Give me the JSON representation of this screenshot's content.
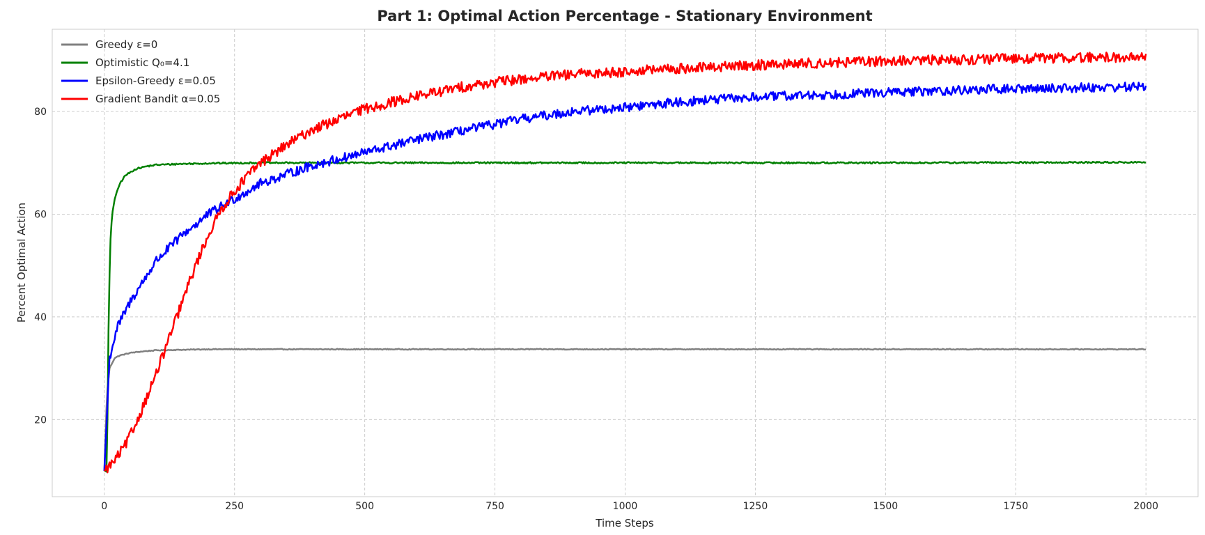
{
  "chart_data": {
    "type": "line",
    "title": "Part 1: Optimal Action Percentage - Stationary Environment",
    "xlabel": "Time Steps",
    "ylabel": "Percent Optimal Action",
    "xlim": [
      -100,
      2100
    ],
    "ylim": [
      5,
      96
    ],
    "xticks": [
      0,
      250,
      500,
      750,
      1000,
      1250,
      1500,
      1750,
      2000
    ],
    "xtick_labels": [
      "0",
      "250",
      "500",
      "750",
      "1000",
      "1250",
      "1500",
      "1750",
      "2000"
    ],
    "yticks": [
      20,
      40,
      60,
      80
    ],
    "ytick_labels": [
      "20",
      "40",
      "60",
      "80"
    ],
    "grid": true,
    "legend_position": "top-left",
    "series": [
      {
        "name": "Greedy ε=0",
        "color": "#808080",
        "x": [
          0,
          5,
          10,
          20,
          30,
          50,
          75,
          100,
          150,
          200,
          300,
          500,
          1000,
          1500,
          2000
        ],
        "values": [
          10,
          25,
          30,
          32,
          32.5,
          33.0,
          33.3,
          33.5,
          33.6,
          33.7,
          33.7,
          33.7,
          33.7,
          33.7,
          33.7
        ]
      },
      {
        "name": "Optimistic Q₀=4.1",
        "color": "#008000",
        "x": [
          0,
          5,
          7,
          9,
          12,
          15,
          20,
          30,
          40,
          60,
          80,
          100,
          150,
          200,
          300,
          500,
          1000,
          1500,
          2000
        ],
        "values": [
          10,
          10,
          30,
          45,
          55,
          60,
          63,
          66,
          67.5,
          68.8,
          69.3,
          69.6,
          69.8,
          69.9,
          70,
          70,
          70,
          70,
          70.1
        ]
      },
      {
        "name": "Epsilon-Greedy ε=0.05",
        "color": "#0000ff",
        "x": [
          0,
          10,
          25,
          50,
          75,
          100,
          150,
          200,
          250,
          300,
          400,
          500,
          600,
          700,
          800,
          900,
          1000,
          1100,
          1200,
          1300,
          1400,
          1500,
          1600,
          1700,
          1800,
          1900,
          2000
        ],
        "values": [
          10,
          32,
          38,
          43,
          47,
          51,
          56,
          60,
          63,
          66,
          69.5,
          72,
          74.5,
          76.5,
          78.5,
          80,
          80.8,
          81.8,
          82.5,
          83,
          83.3,
          83.7,
          84,
          84.3,
          84.5,
          84.7,
          84.8
        ]
      },
      {
        "name": "Gradient Bandit α=0.05",
        "color": "#ff0000",
        "x": [
          0,
          20,
          40,
          60,
          80,
          100,
          125,
          150,
          175,
          200,
          225,
          250,
          275,
          300,
          350,
          400,
          450,
          500,
          600,
          700,
          800,
          900,
          1000,
          1100,
          1200,
          1300,
          1400,
          1500,
          1600,
          1700,
          1800,
          1900,
          2000
        ],
        "values": [
          10,
          12,
          15,
          19,
          24,
          29,
          36,
          43,
          50,
          56,
          61,
          64.5,
          67.5,
          70,
          73.5,
          76.5,
          78.5,
          80.5,
          83,
          85,
          86.3,
          87.2,
          87.8,
          88.3,
          88.8,
          89.2,
          89.5,
          89.8,
          90,
          90.2,
          90.4,
          90.5,
          90.6
        ]
      }
    ]
  }
}
